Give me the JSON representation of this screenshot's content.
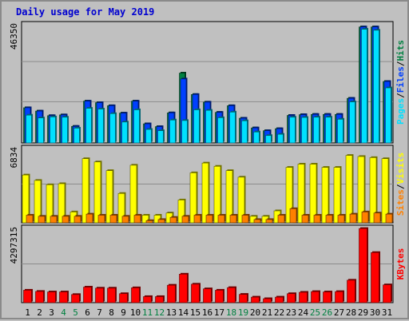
{
  "chart_data": [
    {
      "type": "bar",
      "title": "Daily usage for May 2019",
      "categories": [
        "1",
        "2",
        "3",
        "4",
        "5",
        "6",
        "7",
        "8",
        "9",
        "10",
        "11",
        "12",
        "13",
        "14",
        "15",
        "16",
        "17",
        "18",
        "19",
        "20",
        "21",
        "22",
        "23",
        "24",
        "25",
        "26",
        "27",
        "28",
        "29",
        "30",
        "31"
      ],
      "weekend_days": [
        "4",
        "5",
        "11",
        "12",
        "18",
        "19",
        "25",
        "26"
      ],
      "ylabel": [
        "Pages",
        "Files",
        "Hits"
      ],
      "ymax_label": "46350",
      "ylim": [
        0,
        46350
      ],
      "series": [
        {
          "name": "Hits",
          "color": "#008040",
          "values": [
            13800,
            12500,
            10700,
            11000,
            6500,
            16400,
            15800,
            14600,
            11700,
            16400,
            7500,
            6400,
            11800,
            27400,
            19000,
            16000,
            12000,
            14600,
            9700,
            5900,
            4800,
            5600,
            10800,
            11100,
            11200,
            11200,
            11200,
            17500,
            45500,
            45500,
            24100
          ]
        },
        {
          "name": "Files",
          "color": "#0040ff",
          "values": [
            13800,
            12500,
            10700,
            11000,
            6500,
            16400,
            15800,
            14600,
            11700,
            16400,
            7500,
            6400,
            11800,
            25100,
            19000,
            16000,
            12000,
            14600,
            9700,
            5900,
            4800,
            5600,
            10800,
            11100,
            11200,
            11200,
            11200,
            17500,
            45500,
            45500,
            24100
          ]
        },
        {
          "name": "Pages",
          "color": "#00e0ff",
          "values": [
            10900,
            9800,
            10200,
            10100,
            5800,
            13600,
            13300,
            11500,
            8200,
            13000,
            5300,
            4800,
            9000,
            8800,
            13000,
            12800,
            9900,
            12100,
            8700,
            4300,
            2900,
            3400,
            10100,
            10000,
            10100,
            10100,
            9300,
            16100,
            44600,
            44200,
            21600
          ]
        }
      ]
    },
    {
      "type": "bar",
      "ylabel": [
        "Sites",
        "Visits"
      ],
      "ymax_label": "6834",
      "ylim": [
        0,
        6834
      ],
      "series": [
        {
          "name": "Visits",
          "color": "#ffff00",
          "values": [
            4400,
            3900,
            3500,
            3600,
            1000,
            5900,
            5600,
            4800,
            2700,
            5300,
            700,
            700,
            900,
            2100,
            4600,
            5500,
            5200,
            4800,
            4200,
            600,
            600,
            1100,
            5100,
            5400,
            5400,
            5100,
            5100,
            6200,
            6100,
            6000,
            5900
          ]
        },
        {
          "name": "Sites",
          "color": "#ff8000",
          "values": [
            700,
            600,
            600,
            600,
            600,
            800,
            700,
            700,
            600,
            700,
            200,
            300,
            500,
            600,
            700,
            700,
            700,
            700,
            700,
            300,
            300,
            700,
            1300,
            700,
            700,
            700,
            700,
            800,
            1000,
            900,
            800
          ]
        }
      ]
    },
    {
      "type": "bar",
      "ylabel": [
        "KBytes"
      ],
      "ymax_label": "4297315",
      "ylim": [
        0,
        4297315
      ],
      "series": [
        {
          "name": "KBytes",
          "color": "#ff0000",
          "values": [
            720000,
            650000,
            620000,
            620000,
            470000,
            900000,
            840000,
            840000,
            520000,
            860000,
            350000,
            350000,
            1010000,
            1650000,
            1070000,
            800000,
            720000,
            870000,
            480000,
            320000,
            230000,
            320000,
            520000,
            600000,
            640000,
            620000,
            640000,
            1300000,
            4290000,
            2900000,
            1030000
          ]
        }
      ]
    }
  ]
}
